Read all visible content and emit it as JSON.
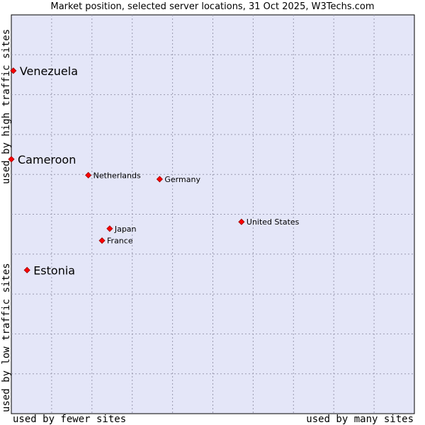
{
  "chart_data": {
    "type": "scatter",
    "title": "Market position, selected server locations, 31 Oct 2025, W3Techs.com",
    "xlabel_left": "used by fewer sites",
    "xlabel_right": "used by many sites",
    "ylabel_top": "used by high traffic sites",
    "ylabel_bottom": "used by low traffic sites",
    "xlim": [
      0,
      100
    ],
    "ylim": [
      0,
      100
    ],
    "grid": true,
    "background_color": "#e4e6f8",
    "point_color": "#ff0000",
    "points": [
      {
        "name": "Venezuela",
        "x": 0.5,
        "y": 86.0,
        "emphasis": true
      },
      {
        "name": "Cameroon",
        "x": 0.0,
        "y": 63.8,
        "emphasis": true
      },
      {
        "name": "Estonia",
        "x": 3.9,
        "y": 36.0,
        "emphasis": true
      },
      {
        "name": "Netherlands",
        "x": 19.1,
        "y": 59.8,
        "emphasis": false
      },
      {
        "name": "Germany",
        "x": 36.8,
        "y": 58.8,
        "emphasis": false
      },
      {
        "name": "United States",
        "x": 57.1,
        "y": 48.1,
        "emphasis": false
      },
      {
        "name": "Japan",
        "x": 24.4,
        "y": 46.4,
        "emphasis": false
      },
      {
        "name": "France",
        "x": 22.5,
        "y": 43.4,
        "emphasis": false
      }
    ]
  }
}
